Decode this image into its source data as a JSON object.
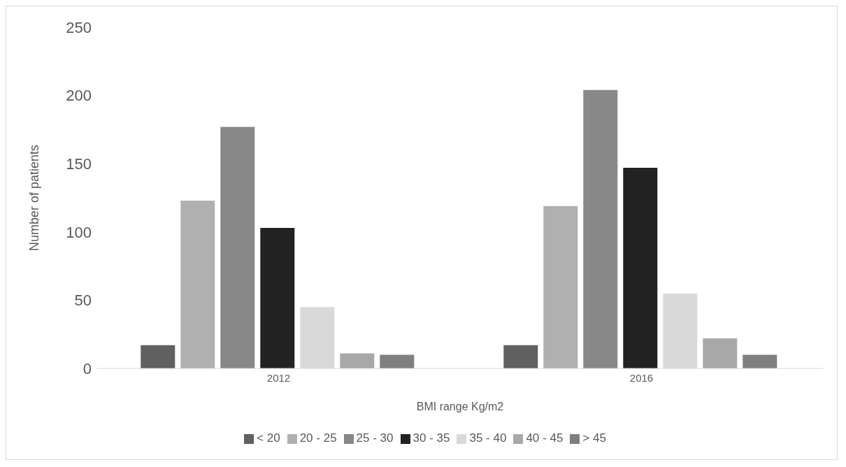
{
  "chart_data": {
    "type": "bar",
    "xlabel": "BMI range Kg/m2",
    "ylabel": "Number of patients",
    "categories": [
      "2012",
      "2016"
    ],
    "series": [
      {
        "name": "< 20",
        "color": "#606060",
        "values": [
          17,
          17
        ]
      },
      {
        "name": "20 - 25",
        "color": "#b0b0b0",
        "values": [
          123,
          119
        ]
      },
      {
        "name": "25 - 30",
        "color": "#888888",
        "values": [
          177,
          204
        ]
      },
      {
        "name": "30 - 35",
        "color": "#222222",
        "values": [
          103,
          147
        ]
      },
      {
        "name": "35 - 40",
        "color": "#d9d9d9",
        "values": [
          45,
          55
        ]
      },
      {
        "name": "40 - 45",
        "color": "#a8a8a8",
        "values": [
          11,
          22
        ]
      },
      {
        "name": "> 45",
        "color": "#7f7f7f",
        "values": [
          10,
          10
        ]
      }
    ],
    "ylim": [
      0,
      250
    ],
    "yticks": [
      0,
      50,
      100,
      150,
      200,
      250
    ],
    "grid": false,
    "legend": "bottom"
  }
}
